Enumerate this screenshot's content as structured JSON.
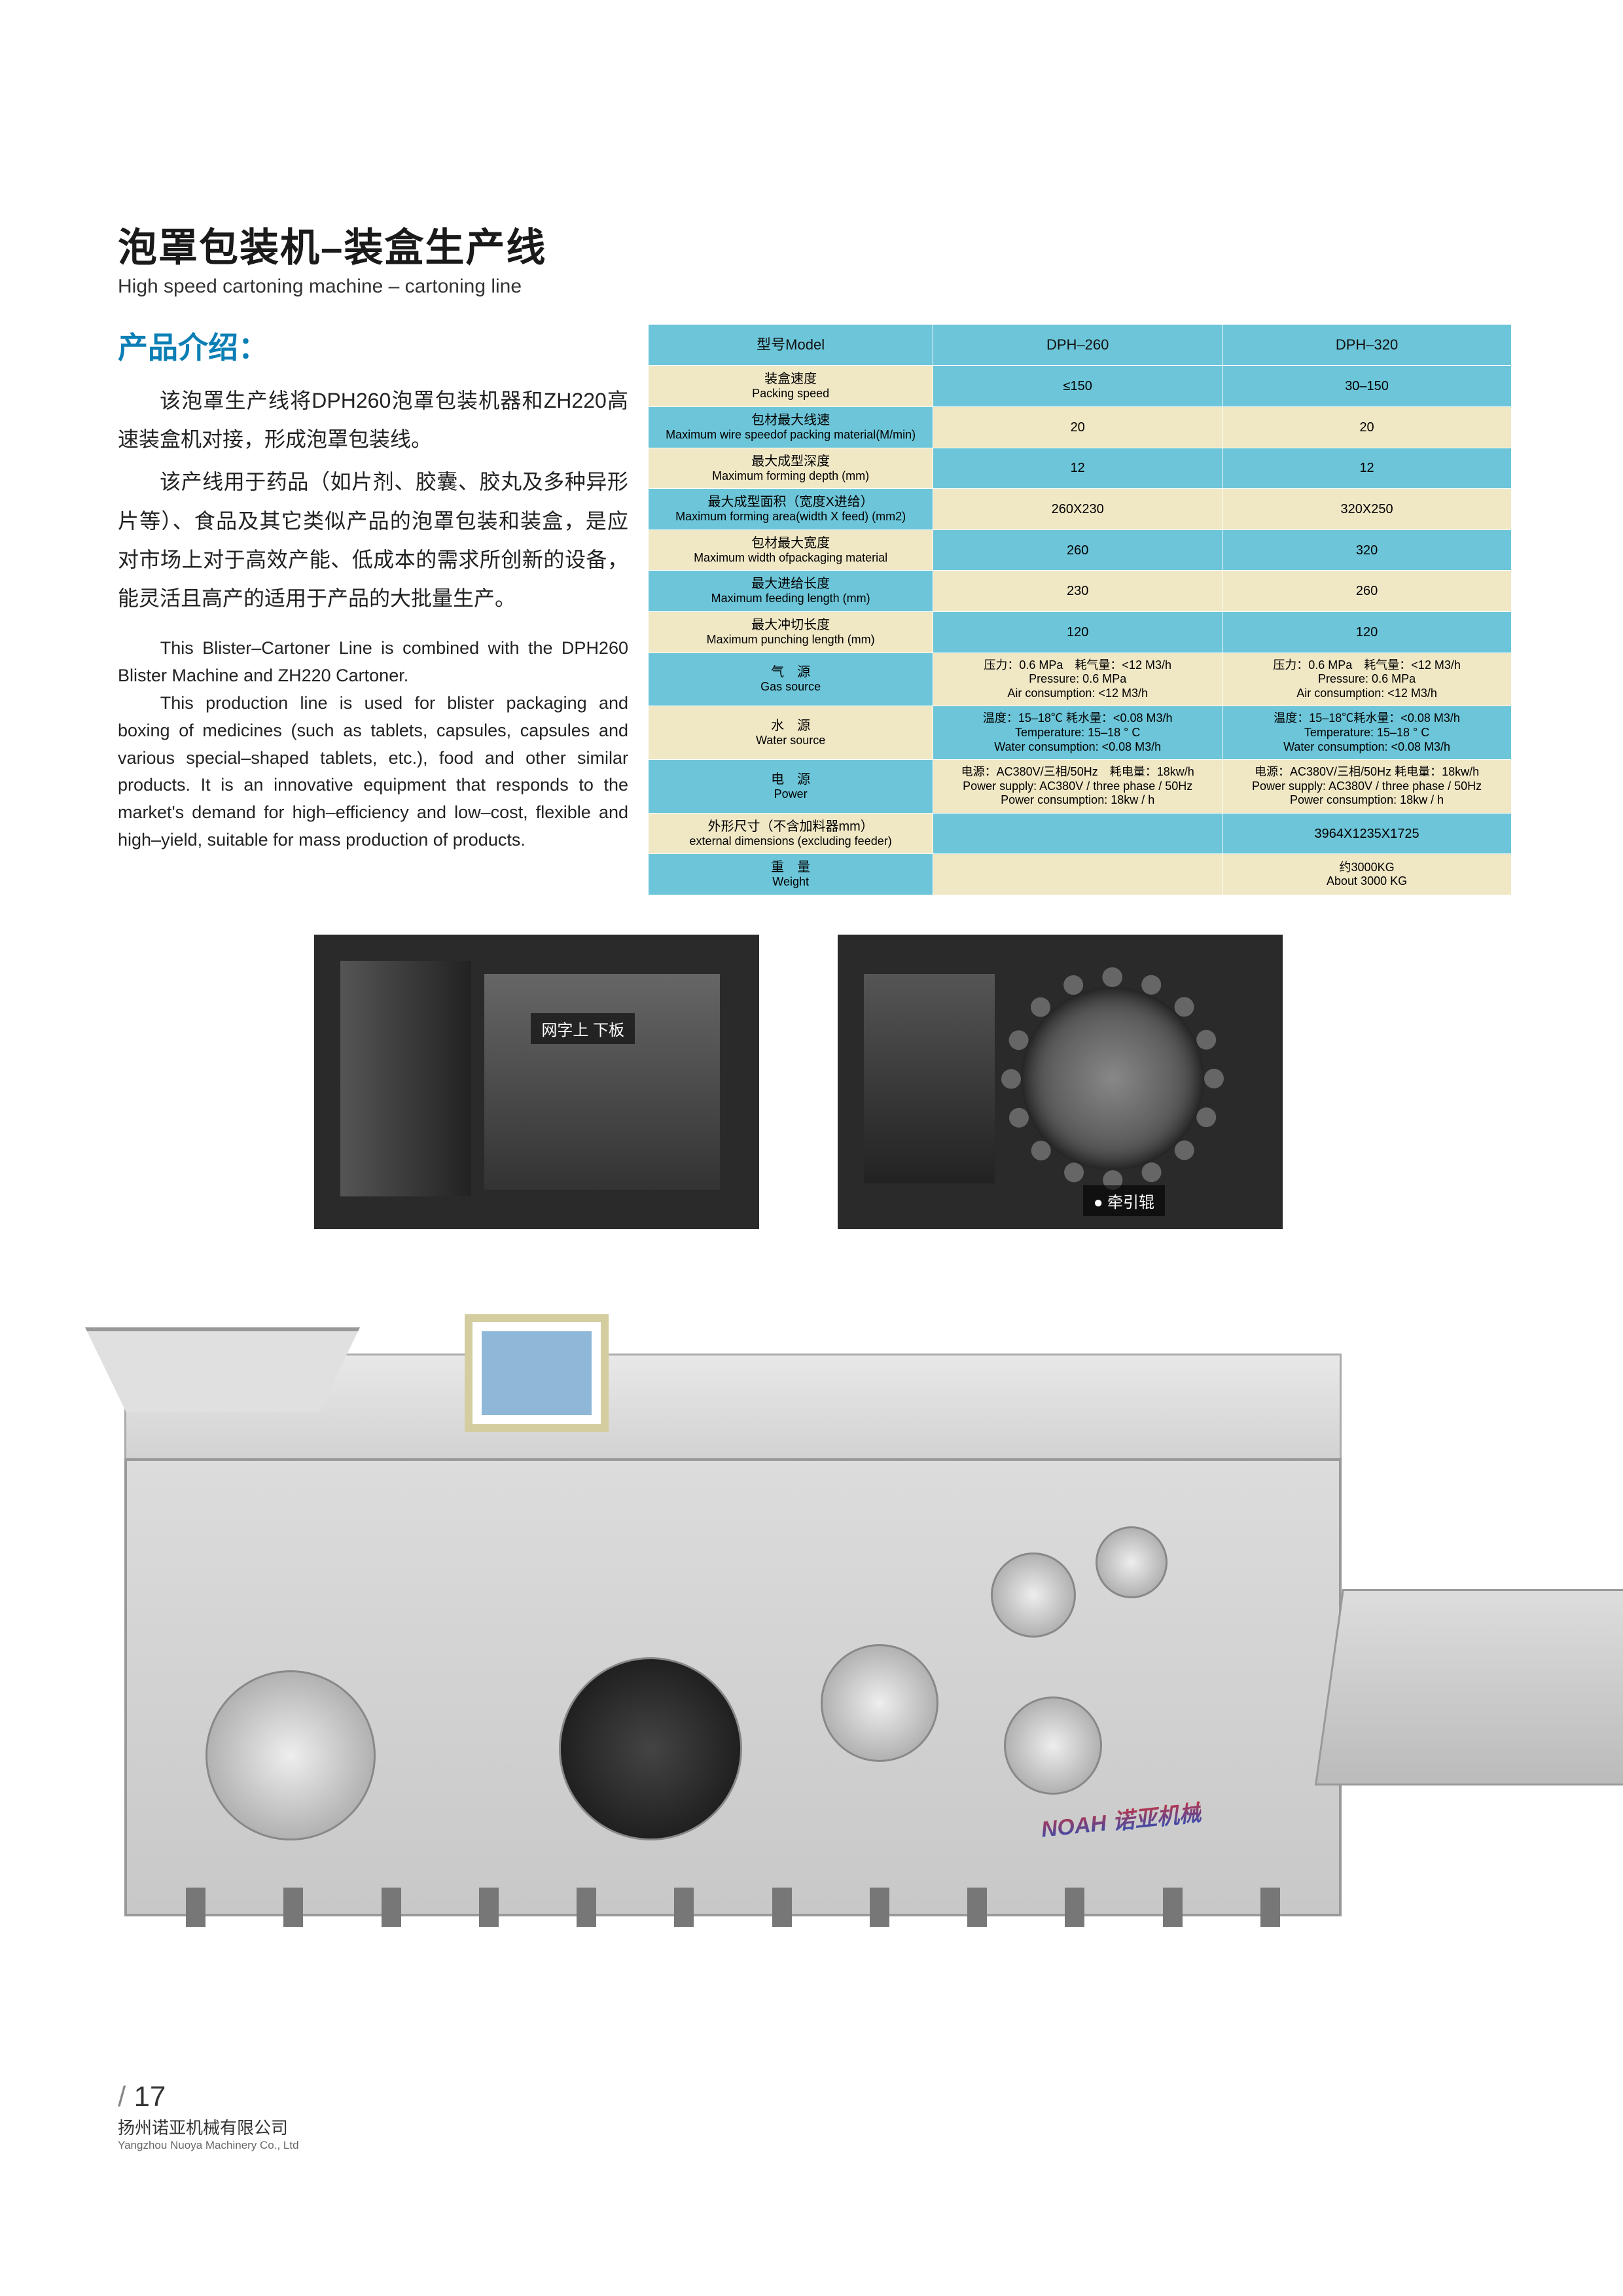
{
  "header": {
    "title_cn": "泡罩包装机–装盒生产线",
    "title_en": "High speed cartoning machine – cartoning line"
  },
  "intro": {
    "title": "产品介绍：",
    "para_cn_1": "该泡罩生产线将DPH260泡罩包装机器和ZH220高速装盒机对接，形成泡罩包装线。",
    "para_cn_2": "该产线用于药品（如片剂、胶囊、胶丸及多种异形片等）、食品及其它类似产品的泡罩包装和装盒，是应对市场上对于高效产能、低成本的需求所创新的设备，能灵活且高产的适用于产品的大批量生产。",
    "para_en_1": "This Blister–Cartoner Line is combined with the DPH260 Blister Machine and ZH220 Cartoner.",
    "para_en_2": "This production line is used for blister packaging and boxing of medicines (such as tablets, capsules, capsules and various special–shaped tablets, etc.), food and other similar products. It is an innovative equipment that responds to the market's demand for high–efficiency and low–cost, flexible and high–yield, suitable for mass production of products."
  },
  "table": {
    "header": {
      "c0": "型号Model",
      "c1": "DPH–260",
      "c2": "DPH–320"
    },
    "rows": [
      {
        "label_cn": "装盒速度",
        "label_en": "Packing speed",
        "v1": "≤150",
        "v2": "30–150",
        "cls": "row-beige"
      },
      {
        "label_cn": "包材最大线速",
        "label_en": "Maximum wire speedof packing material(M/min)",
        "v1": "20",
        "v2": "20",
        "cls": "row-blue"
      },
      {
        "label_cn": "最大成型深度",
        "label_en": "Maximum forming depth (mm)",
        "v1": "12",
        "v2": "12",
        "cls": "row-beige"
      },
      {
        "label_cn": "最大成型面积（宽度X进给）",
        "label_en": "Maximum forming area(width X feed) (mm2)",
        "v1": "260X230",
        "v2": "320X250",
        "cls": "row-blue"
      },
      {
        "label_cn": "包材最大宽度",
        "label_en": "Maximum width ofpackaging material",
        "v1": "260",
        "v2": "320",
        "cls": "row-beige"
      },
      {
        "label_cn": "最大进给长度",
        "label_en": "Maximum feeding length (mm)",
        "v1": "230",
        "v2": "260",
        "cls": "row-blue"
      },
      {
        "label_cn": "最大冲切长度",
        "label_en": "Maximum punching length (mm)",
        "v1": "120",
        "v2": "120",
        "cls": "row-beige"
      },
      {
        "label_cn": "气　源",
        "label_en": "Gas source",
        "v1": "压力：0.6 MPa　耗气量：<12 M3/h\nPressure: 0.6 MPa\nAir consumption: <12 M3/h",
        "v2": "压力：0.6 MPa　耗气量：<12 M3/h\nPressure: 0.6 MPa\nAir consumption: <12 M3/h",
        "cls": "row-blue"
      },
      {
        "label_cn": "水　源",
        "label_en": "Water source",
        "v1": "温度：15–18℃ 耗水量：<0.08 M3/h\nTemperature: 15–18 ° C\nWater consumption: <0.08 M3/h",
        "v2": "温度：15–18℃耗水量：<0.08 M3/h\nTemperature: 15–18 ° C\nWater consumption: <0.08 M3/h",
        "cls": "row-beige"
      },
      {
        "label_cn": "电　源",
        "label_en": "Power",
        "v1": "电源：AC380V/三相/50Hz　耗电量：18kw/h\nPower supply: AC380V / three phase / 50Hz\nPower consumption: 18kw / h",
        "v2": "电源：AC380V/三相/50Hz 耗电量：18kw/h\nPower supply: AC380V / three phase / 50Hz\nPower consumption: 18kw / h",
        "cls": "row-blue"
      },
      {
        "label_cn": "外形尺寸（不含加料器mm）",
        "label_en": "external dimensions (excluding feeder)",
        "v1": "",
        "v2": "3964X1235X1725",
        "cls": "row-beige"
      },
      {
        "label_cn": "重　量",
        "label_en": "Weight",
        "v1": "",
        "v2": "约3000KG\nAbout 3000 KG",
        "cls": "row-blue"
      }
    ]
  },
  "detail_labels": {
    "left": "网字上\n下板",
    "right": "牵引辊"
  },
  "brand": "NOAH 诺亚机械",
  "footer": {
    "page": "17",
    "company_cn": "扬州诺亚机械有限公司",
    "company_en": "Yangzhou Nuoya Machinery Co., Ltd"
  },
  "colors": {
    "table_blue": "#6cc5d8",
    "table_beige": "#f0e7c5",
    "intro_title": "#0b7fb5"
  }
}
